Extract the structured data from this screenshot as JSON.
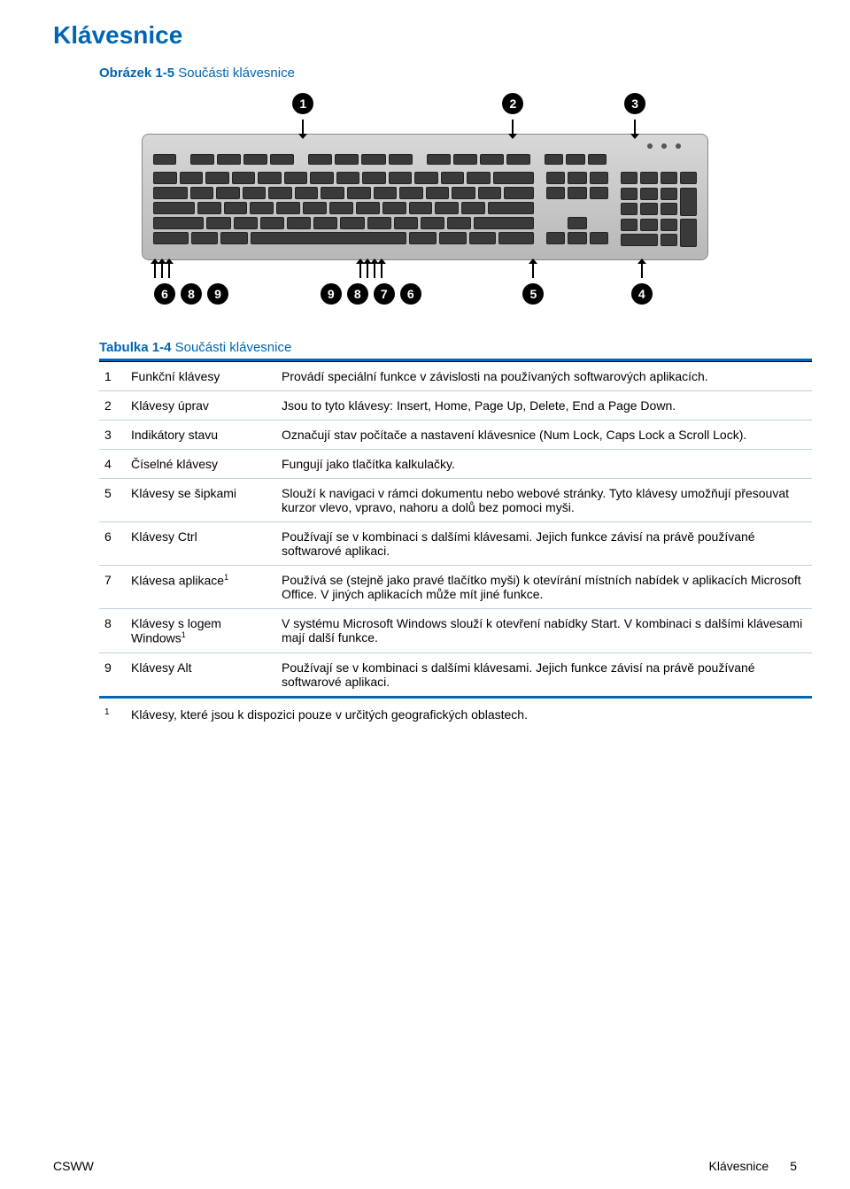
{
  "colors": {
    "title_color": "#0066b3",
    "rule_color": "#0066b3",
    "row_border_color": "#bfcfe2",
    "text_color": "#000000"
  },
  "page_title": "Klávesnice",
  "figure": {
    "label": "Obrázek 1-5",
    "text": "Součásti klávesnice",
    "top_callouts": [
      "1",
      "2",
      "3"
    ],
    "bottom_left": [
      "6",
      "8",
      "9"
    ],
    "bottom_mid": [
      "9",
      "8",
      "7",
      "6"
    ],
    "bottom_r1": [
      "5"
    ],
    "bottom_r2": [
      "4"
    ]
  },
  "table": {
    "caption_label": "Tabulka 1-4",
    "caption_text": "Součásti klávesnice",
    "rows": [
      {
        "num": "1",
        "name": "Funkční klávesy",
        "sup": "",
        "desc": "Provádí speciální funkce v závislosti na používaných softwarových aplikacích."
      },
      {
        "num": "2",
        "name": "Klávesy úprav",
        "sup": "",
        "desc": "Jsou to tyto klávesy: Insert, Home, Page Up, Delete, End a Page Down."
      },
      {
        "num": "3",
        "name": "Indikátory stavu",
        "sup": "",
        "desc": "Označují stav počítače a nastavení klávesnice (Num Lock, Caps Lock a Scroll Lock)."
      },
      {
        "num": "4",
        "name": "Číselné klávesy",
        "sup": "",
        "desc": "Fungují jako tlačítka kalkulačky."
      },
      {
        "num": "5",
        "name": "Klávesy se šipkami",
        "sup": "",
        "desc": "Slouží k navigaci v rámci dokumentu nebo webové stránky. Tyto klávesy umožňují přesouvat kurzor vlevo, vpravo, nahoru a dolů bez pomoci myši."
      },
      {
        "num": "6",
        "name": "Klávesy Ctrl",
        "sup": "",
        "desc": "Používají se v kombinaci s dalšími klávesami. Jejich funkce závisí na právě používané softwarové aplikaci."
      },
      {
        "num": "7",
        "name": "Klávesa aplikace",
        "sup": "1",
        "desc": "Používá se (stejně jako pravé tlačítko myši) k otevírání místních nabídek v aplikacích Microsoft Office. V jiných aplikacích může mít jiné funkce."
      },
      {
        "num": "8",
        "name": "Klávesy s logem Windows",
        "sup": "1",
        "desc": "V systému Microsoft Windows slouží k otevření nabídky Start. V kombinaci s dalšími klávesami mají další funkce."
      },
      {
        "num": "9",
        "name": "Klávesy Alt",
        "sup": "",
        "desc": "Používají se v kombinaci s dalšími klávesami. Jejich funkce závisí na právě používané softwarové aplikaci."
      }
    ],
    "footnote_num": "1",
    "footnote_text": "Klávesy, které jsou k dispozici pouze v určitých geografických oblastech."
  },
  "footer": {
    "left": "CSWW",
    "right_label": "Klávesnice",
    "page_num": "5"
  }
}
